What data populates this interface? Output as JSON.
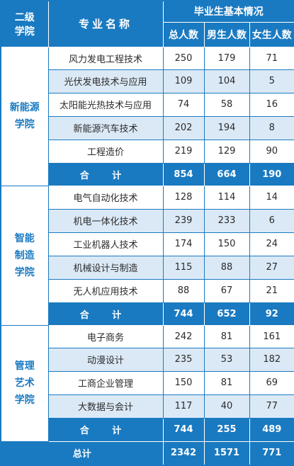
{
  "header": {
    "college": [
      "二级",
      "学院"
    ],
    "major": "专业名称",
    "group": "毕业生基本情况",
    "cols": [
      "总人数",
      "男生人数",
      "女生人数"
    ]
  },
  "colleges": [
    {
      "name": [
        "新能源",
        "学院"
      ],
      "majors": [
        {
          "name": "风力发电工程技术",
          "total": "250",
          "male": "179",
          "female": "71"
        },
        {
          "name": "光伏发电技术与应用",
          "total": "109",
          "male": "104",
          "female": "5"
        },
        {
          "name": "太阳能光热技术与应用",
          "total": "74",
          "male": "58",
          "female": "16"
        },
        {
          "name": "新能源汽车技术",
          "total": "202",
          "male": "194",
          "female": "8"
        },
        {
          "name": "工程造价",
          "total": "219",
          "male": "129",
          "female": "90"
        }
      ],
      "subtotal": {
        "label": "合 计",
        "total": "854",
        "male": "664",
        "female": "190"
      }
    },
    {
      "name": [
        "智能",
        "制造",
        "学院"
      ],
      "majors": [
        {
          "name": "电气自动化技术",
          "total": "128",
          "male": "114",
          "female": "14"
        },
        {
          "name": "机电一体化技术",
          "total": "239",
          "male": "233",
          "female": "6"
        },
        {
          "name": "工业机器人技术",
          "total": "174",
          "male": "150",
          "female": "24"
        },
        {
          "name": "机械设计与制造",
          "total": "115",
          "male": "88",
          "female": "27"
        },
        {
          "name": "无人机应用技术",
          "total": "88",
          "male": "67",
          "female": "21"
        }
      ],
      "subtotal": {
        "label": "合 计",
        "total": "744",
        "male": "652",
        "female": "92"
      }
    },
    {
      "name": [
        "管理",
        "艺术",
        "学院"
      ],
      "majors": [
        {
          "name": "电子商务",
          "total": "242",
          "male": "81",
          "female": "161"
        },
        {
          "name": "动漫设计",
          "total": "235",
          "male": "53",
          "female": "182"
        },
        {
          "name": "工商企业管理",
          "total": "150",
          "male": "81",
          "female": "69"
        },
        {
          "name": "大数据与会计",
          "total": "117",
          "male": "40",
          "female": "77"
        }
      ],
      "subtotal": {
        "label": "合 计",
        "total": "744",
        "male": "255",
        "female": "489"
      }
    }
  ],
  "grand_total": {
    "label": "总计",
    "total": "2342",
    "male": "1571",
    "female": "771"
  }
}
